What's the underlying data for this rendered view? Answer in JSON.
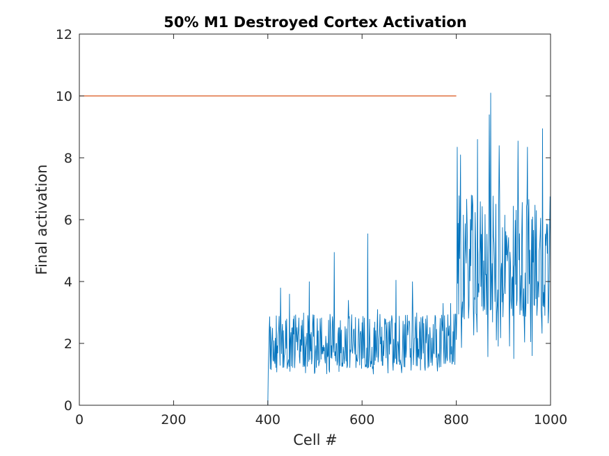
{
  "chart_data": {
    "type": "line",
    "title": "50% M1 Destroyed Cortex Activation",
    "xlabel": "Cell #",
    "ylabel": "Final activation",
    "xlim": [
      0,
      1000
    ],
    "ylim": [
      0,
      12
    ],
    "xticks": [
      "0",
      "200",
      "400",
      "600",
      "800",
      "1000"
    ],
    "yticks": [
      "0",
      "2",
      "4",
      "6",
      "8",
      "10",
      "12"
    ],
    "grid": false,
    "series": [
      {
        "color": "#0072BD",
        "segments": [
          {
            "x_range": [
              0,
              400
            ],
            "constant": 0
          },
          {
            "x_range": [
              401,
              800
            ],
            "baseline_min": 1.0,
            "typical_range": [
              1.2,
              3.0
            ],
            "peaks": [
              [
                410,
                2.5
              ],
              [
                427,
                3.8
              ],
              [
                446,
                3.6
              ],
              [
                488,
                4.0
              ],
              [
                541,
                4.95
              ],
              [
                571,
                3.4
              ],
              [
                612,
                5.55
              ],
              [
                633,
                3.1
              ],
              [
                672,
                4.05
              ],
              [
                707,
                4.0
              ],
              [
                772,
                3.3
              ],
              [
                788,
                3.3
              ]
            ]
          },
          {
            "x_range": [
              801,
              1000
            ],
            "baseline_min": 1.5,
            "typical_range": [
              2.8,
              6.8
            ],
            "peaks": [
              [
                802,
                8.35
              ],
              [
                809,
                8.1
              ],
              [
                832,
                6.8
              ],
              [
                845,
                8.6
              ],
              [
                870,
                9.4
              ],
              [
                873,
                10.1
              ],
              [
                885,
                2.1
              ],
              [
                891,
                8.4
              ],
              [
                922,
                1.5
              ],
              [
                931,
                8.55
              ],
              [
                951,
                8.35
              ],
              [
                970,
                6.3
              ],
              [
                983,
                8.95
              ],
              [
                995,
                2.65
              ],
              [
                999,
                6.75
              ]
            ]
          }
        ]
      },
      {
        "color": "#D95319",
        "x": [
          0,
          800
        ],
        "y": [
          10,
          10
        ]
      }
    ]
  }
}
